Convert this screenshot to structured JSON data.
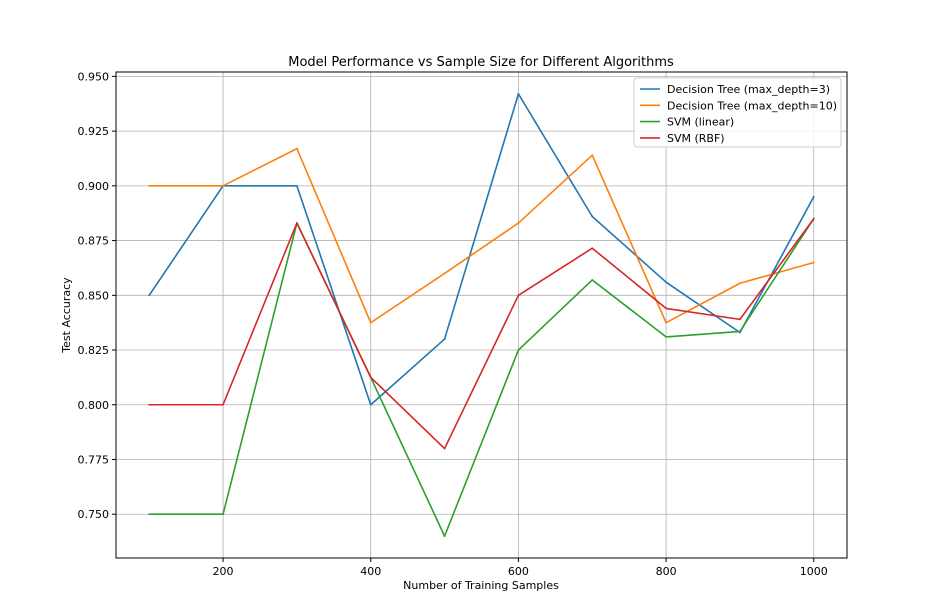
{
  "chart_data": {
    "type": "line",
    "title": "Model Performance vs Sample Size for Different Algorithms",
    "xlabel": "Number of Training Samples",
    "ylabel": "Test Accuracy",
    "x": [
      100,
      200,
      300,
      400,
      500,
      600,
      700,
      800,
      900,
      1000
    ],
    "xlim": [
      55,
      1045
    ],
    "ylim": [
      0.73,
      0.952
    ],
    "xticks": [
      200,
      400,
      600,
      800,
      1000
    ],
    "xtick_labels": [
      "200",
      "400",
      "600",
      "800",
      "1000"
    ],
    "yticks": [
      0.75,
      0.775,
      0.8,
      0.825,
      0.85,
      0.875,
      0.9,
      0.925,
      0.95
    ],
    "ytick_labels": [
      "0.750",
      "0.775",
      "0.800",
      "0.825",
      "0.850",
      "0.875",
      "0.900",
      "0.925",
      "0.950"
    ],
    "grid": true,
    "legend_position": "top-right",
    "series": [
      {
        "name": "Decision Tree (max_depth=3)",
        "color": "#1f77b4",
        "values": [
          0.85,
          0.9,
          0.9,
          0.8,
          0.83,
          0.942,
          0.886,
          0.856,
          0.833,
          0.895
        ]
      },
      {
        "name": "Decision Tree (max_depth=10)",
        "color": "#ff7f0e",
        "values": [
          0.9,
          0.9,
          0.917,
          0.8375,
          0.86,
          0.883,
          0.914,
          0.8375,
          0.8555,
          0.865
        ]
      },
      {
        "name": "SVM (linear)",
        "color": "#2ca02c",
        "values": [
          0.75,
          0.75,
          0.883,
          0.8125,
          0.74,
          0.825,
          0.857,
          0.831,
          0.8335,
          0.885
        ]
      },
      {
        "name": "SVM (RBF)",
        "color": "#d62728",
        "values": [
          0.8,
          0.8,
          0.883,
          0.8125,
          0.78,
          0.85,
          0.8715,
          0.844,
          0.839,
          0.885
        ]
      }
    ]
  }
}
